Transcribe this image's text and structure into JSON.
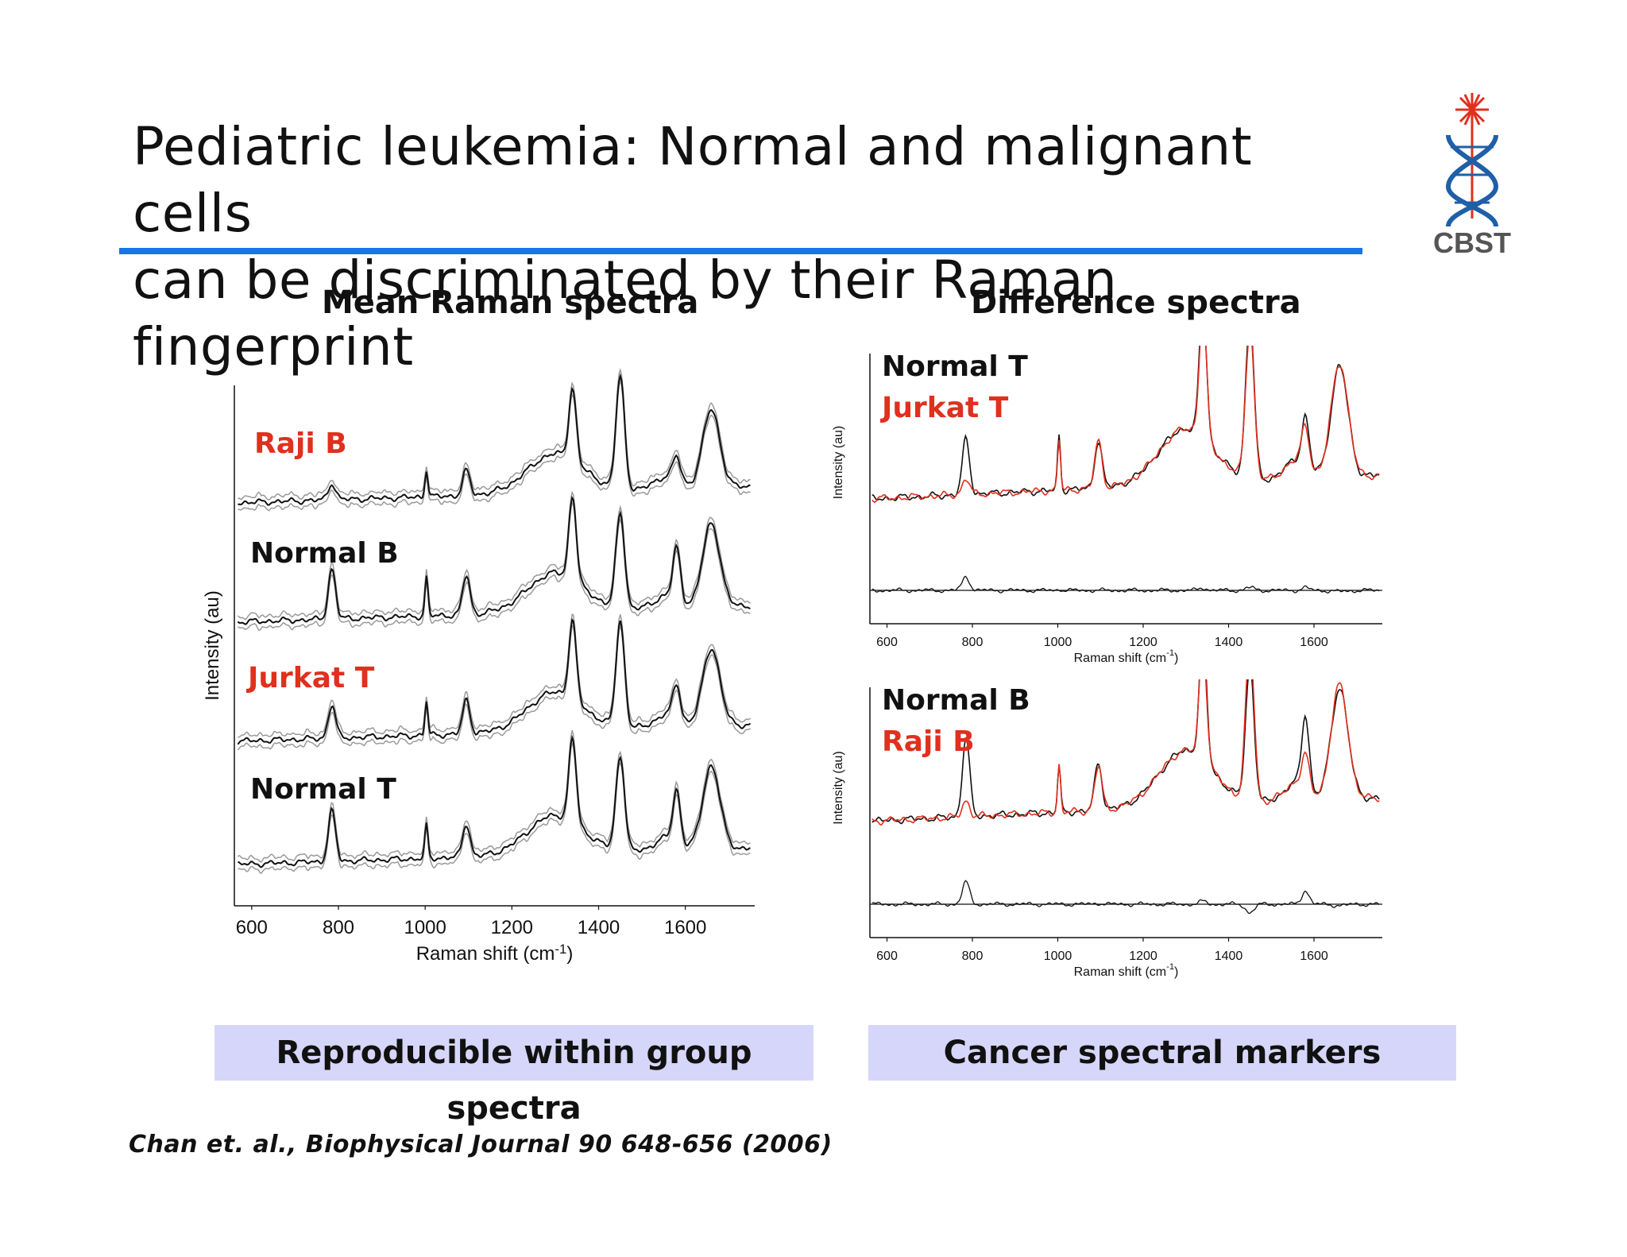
{
  "slide": {
    "title_line1": "Pediatric leukemia: Normal and malignant cells",
    "title_line2": "can be discriminated by their Raman fingerprint",
    "logo_text": "CBST",
    "left_heading": "Mean Raman spectra",
    "right_heading": "Difference spectra",
    "left_caption": "Reproducible within group spectra",
    "right_caption": "Cancer spectral markers",
    "citation": "Chan et. al., Biophysical Journal 90 648-656 (2006)"
  },
  "colors": {
    "accent_rule": "#1a73e8",
    "red": "#e0301e",
    "caption_bg": "#d6d6fa",
    "logo_blue": "#1f5fa8"
  },
  "chart_data": [
    {
      "type": "line",
      "title": "Mean Raman spectra",
      "xlabel": "Raman shift (cm-1)",
      "ylabel": "Intensity (au)",
      "xlim": [
        560,
        1760
      ],
      "xticks": [
        600,
        800,
        1000,
        1200,
        1400,
        1600
      ],
      "series": [
        {
          "name": "Raji B",
          "color": "#e0301e",
          "peaks": [
            [
              785,
              0.15
            ],
            [
              1003,
              0.25
            ],
            [
              1095,
              0.22
            ],
            [
              1340,
              0.65
            ],
            [
              1450,
              1.0
            ],
            [
              1580,
              0.2
            ],
            [
              1660,
              0.7
            ]
          ]
        },
        {
          "name": "Normal B",
          "color": "#111111",
          "peaks": [
            [
              785,
              0.45
            ],
            [
              1003,
              0.35
            ],
            [
              1095,
              0.35
            ],
            [
              1340,
              0.75
            ],
            [
              1450,
              0.85
            ],
            [
              1580,
              0.45
            ],
            [
              1660,
              0.75
            ]
          ]
        },
        {
          "name": "Jurkat T",
          "color": "#e0301e",
          "peaks": [
            [
              785,
              0.3
            ],
            [
              1003,
              0.3
            ],
            [
              1095,
              0.3
            ],
            [
              1340,
              0.7
            ],
            [
              1450,
              0.95
            ],
            [
              1580,
              0.3
            ],
            [
              1660,
              0.7
            ]
          ]
        },
        {
          "name": "Normal T",
          "color": "#111111",
          "peaks": [
            [
              785,
              0.45
            ],
            [
              1003,
              0.3
            ],
            [
              1095,
              0.3
            ],
            [
              1340,
              0.75
            ],
            [
              1450,
              0.85
            ],
            [
              1580,
              0.45
            ],
            [
              1660,
              0.75
            ]
          ]
        }
      ]
    },
    {
      "type": "line",
      "title": "Difference spectra",
      "xlabel": "Raman shift (cm-1)",
      "ylabel": "Intensity (au)",
      "xlim": [
        560,
        1760
      ],
      "xticks": [
        600,
        800,
        1000,
        1200,
        1400,
        1600
      ],
      "series": [
        {
          "name": "Normal T",
          "color": "#111111",
          "peaks": [
            [
              785,
              0.35
            ],
            [
              1003,
              0.35
            ],
            [
              1095,
              0.3
            ],
            [
              1340,
              0.85
            ],
            [
              1450,
              1.0
            ],
            [
              1580,
              0.3
            ],
            [
              1660,
              0.7
            ]
          ]
        },
        {
          "name": "Jurkat T",
          "color": "#e0301e",
          "peaks": [
            [
              785,
              0.1
            ],
            [
              1003,
              0.32
            ],
            [
              1095,
              0.3
            ],
            [
              1340,
              0.8
            ],
            [
              1450,
              0.95
            ],
            [
              1580,
              0.25
            ],
            [
              1660,
              0.72
            ]
          ]
        }
      ]
    },
    {
      "type": "line",
      "title": "",
      "xlabel": "Raman shift (cm-1)",
      "ylabel": "Intensity (au)",
      "xlim": [
        560,
        1760
      ],
      "xticks": [
        600,
        800,
        1000,
        1200,
        1400,
        1600
      ],
      "series": [
        {
          "name": "Normal B",
          "color": "#111111",
          "peaks": [
            [
              785,
              0.5
            ],
            [
              1003,
              0.3
            ],
            [
              1095,
              0.3
            ],
            [
              1340,
              0.8
            ],
            [
              1450,
              0.85
            ],
            [
              1580,
              0.45
            ],
            [
              1660,
              0.7
            ]
          ]
        },
        {
          "name": "Raji B",
          "color": "#e0301e",
          "peaks": [
            [
              785,
              0.1
            ],
            [
              1003,
              0.3
            ],
            [
              1095,
              0.28
            ],
            [
              1340,
              0.75
            ],
            [
              1450,
              1.0
            ],
            [
              1580,
              0.2
            ],
            [
              1660,
              0.72
            ]
          ]
        }
      ]
    }
  ]
}
